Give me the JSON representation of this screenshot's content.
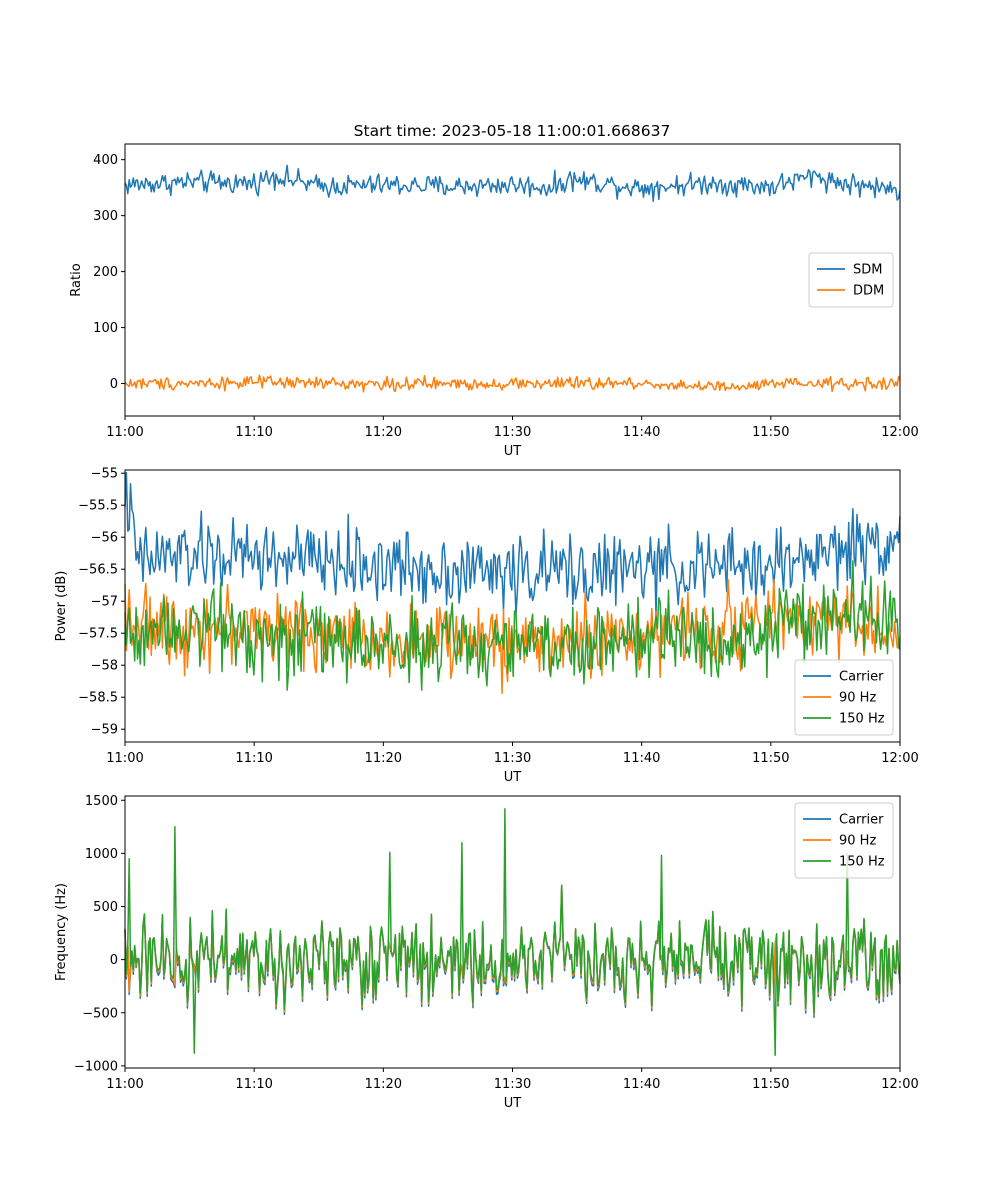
{
  "figure_title": "Start time: 2023-05-18 11:00:01.668637",
  "chart_data": [
    {
      "type": "line",
      "title": "Start time: 2023-05-18 11:00:01.668637",
      "xlabel": "UT",
      "ylabel": "Ratio",
      "xticks": [
        "11:00",
        "11:10",
        "11:20",
        "11:30",
        "11:40",
        "11:50",
        "12:00"
      ],
      "xlim_minutes": [
        0,
        60
      ],
      "ylim": [
        -58,
        428
      ],
      "yticks": [
        400,
        300,
        200,
        100,
        0
      ],
      "grid": false,
      "legend_position": "center-right",
      "series": [
        {
          "name": "SDM",
          "color": "#1f77b4",
          "noise": 12,
          "anchors": [
            [
              0,
              355
            ],
            [
              5,
              360
            ],
            [
              10,
              358
            ],
            [
              11.5,
              372
            ],
            [
              15,
              352
            ],
            [
              20,
              355
            ],
            [
              25,
              352
            ],
            [
              30,
              355
            ],
            [
              33,
              350
            ],
            [
              34.5,
              365
            ],
            [
              40,
              350
            ],
            [
              45,
              358
            ],
            [
              50,
              352
            ],
            [
              53.5,
              372
            ],
            [
              55,
              360
            ],
            [
              60,
              345
            ]
          ]
        },
        {
          "name": "DDM",
          "color": "#ff7f0e",
          "noise": 7,
          "anchors": [
            [
              0,
              0
            ],
            [
              10,
              2
            ],
            [
              20,
              -1
            ],
            [
              30,
              0
            ],
            [
              40,
              0
            ],
            [
              47.5,
              -8
            ],
            [
              50,
              -1
            ],
            [
              60,
              0
            ]
          ]
        }
      ]
    },
    {
      "type": "line",
      "xlabel": "UT",
      "ylabel": "Power (dB)",
      "xticks": [
        "11:00",
        "11:10",
        "11:20",
        "11:30",
        "11:40",
        "11:50",
        "12:00"
      ],
      "xlim_minutes": [
        0,
        60
      ],
      "ylim": [
        -59.2,
        -54.95
      ],
      "yticks": [
        -55.0,
        -55.5,
        -56.0,
        -56.5,
        -57.0,
        -57.5,
        -58.0,
        -58.5,
        -59.0
      ],
      "grid": false,
      "legend_position": "lower-right",
      "series": [
        {
          "name": "Carrier",
          "color": "#1f77b4",
          "noise": 0.35,
          "anchors": [
            [
              0,
              -55.2
            ],
            [
              1,
              -56.4
            ],
            [
              3,
              -56.3
            ],
            [
              10,
              -56.3
            ],
            [
              20,
              -56.45
            ],
            [
              30,
              -56.55
            ],
            [
              40,
              -56.5
            ],
            [
              50,
              -56.45
            ],
            [
              55,
              -56.2
            ],
            [
              60,
              -56.0
            ]
          ]
        },
        {
          "name": "90 Hz",
          "color": "#ff7f0e",
          "noise": 0.35,
          "anchors": [
            [
              0,
              -57.0
            ],
            [
              1,
              -57.4
            ],
            [
              10,
              -57.4
            ],
            [
              20,
              -57.6
            ],
            [
              30,
              -57.65
            ],
            [
              40,
              -57.55
            ],
            [
              50,
              -57.3
            ],
            [
              55,
              -57.2
            ],
            [
              60,
              -57.6
            ]
          ]
        },
        {
          "name": "150 Hz",
          "color": "#2ca02c",
          "noise": 0.38,
          "anchors": [
            [
              0,
              -57.5
            ],
            [
              5,
              -57.3
            ],
            [
              10,
              -57.5
            ],
            [
              20,
              -57.7
            ],
            [
              30,
              -57.7
            ],
            [
              40,
              -57.6
            ],
            [
              50,
              -57.5
            ],
            [
              57,
              -57.1
            ],
            [
              60,
              -57.5
            ]
          ]
        }
      ]
    },
    {
      "type": "line",
      "xlabel": "UT",
      "ylabel": "Frequency (Hz)",
      "xticks": [
        "11:00",
        "11:10",
        "11:20",
        "11:30",
        "11:40",
        "11:50",
        "12:00"
      ],
      "xlim_minutes": [
        0,
        60
      ],
      "ylim": [
        -1020,
        1540
      ],
      "yticks": [
        1500,
        1000,
        500,
        0,
        -500,
        -1000
      ],
      "grid": false,
      "legend_position": "upper-right",
      "series": [
        {
          "name": "Carrier",
          "color": "#1f77b4",
          "noise": 360,
          "offset": -45,
          "anchors": [
            [
              0,
              0
            ],
            [
              60,
              0
            ]
          ]
        },
        {
          "name": "90 Hz",
          "color": "#ff7f0e",
          "noise": 360,
          "offset": -20,
          "anchors": [
            [
              0,
              0
            ],
            [
              60,
              0
            ]
          ]
        },
        {
          "name": "150 Hz",
          "color": "#2ca02c",
          "noise": 360,
          "offset": 0,
          "spikes": [
            [
              0.3,
              950
            ],
            [
              3.9,
              1250
            ],
            [
              5.4,
              -880
            ],
            [
              20.5,
              1010
            ],
            [
              26.1,
              1100
            ],
            [
              29.4,
              1420
            ],
            [
              41.5,
              980
            ],
            [
              50.3,
              -900
            ],
            [
              55.9,
              1000
            ]
          ],
          "anchors": [
            [
              0,
              0
            ],
            [
              60,
              0
            ]
          ]
        }
      ]
    }
  ]
}
